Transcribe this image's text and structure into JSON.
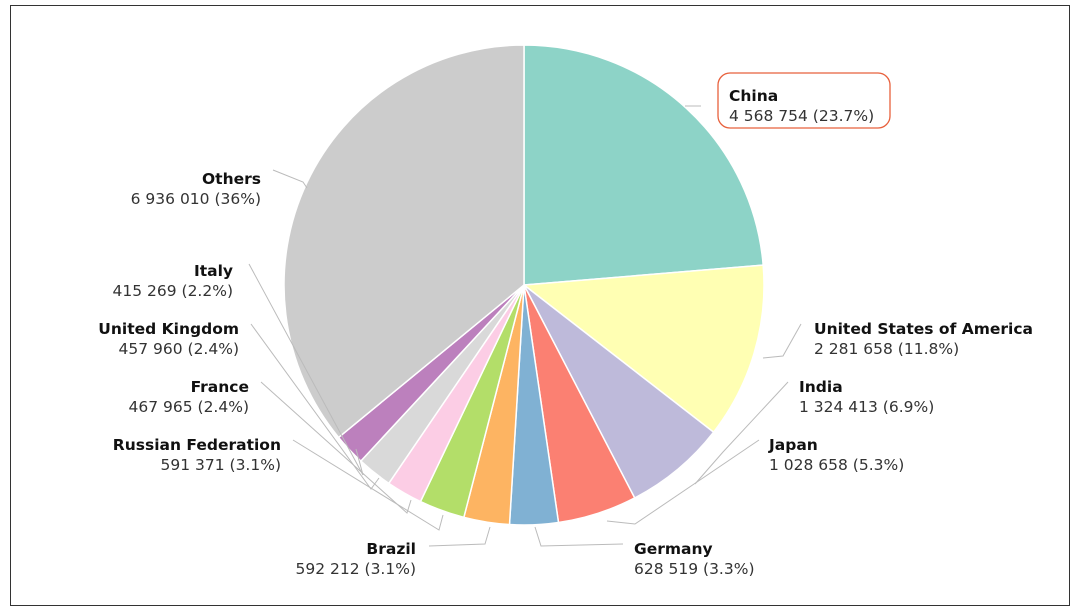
{
  "chart_data": {
    "type": "pie",
    "title": "",
    "slices": [
      {
        "name": "China",
        "value": 4568754,
        "value_text": "4 568 754",
        "percent_text": "23.7%",
        "color": "#8dd3c7",
        "highlighted": true
      },
      {
        "name": "United States of America",
        "value": 2281658,
        "value_text": "2 281 658",
        "percent_text": "11.8%",
        "color": "#ffffb3"
      },
      {
        "name": "India",
        "value": 1324413,
        "value_text": "1 324 413",
        "percent_text": "6.9%",
        "color": "#bebada"
      },
      {
        "name": "Japan",
        "value": 1028658,
        "value_text": "1 028 658",
        "percent_text": "5.3%",
        "color": "#fb8072"
      },
      {
        "name": "Germany",
        "value": 628519,
        "value_text": "628 519",
        "percent_text": "3.3%",
        "color": "#80b1d3"
      },
      {
        "name": "Brazil",
        "value": 592212,
        "value_text": "592 212",
        "percent_text": "3.1%",
        "color": "#fdb462"
      },
      {
        "name": "Russian Federation",
        "value": 591371,
        "value_text": "591 371",
        "percent_text": "3.1%",
        "color": "#b3de69"
      },
      {
        "name": "France",
        "value": 467965,
        "value_text": "467 965",
        "percent_text": "2.4%",
        "color": "#fccde5"
      },
      {
        "name": "United Kingdom",
        "value": 457960,
        "value_text": "457 960",
        "percent_text": "2.4%",
        "color": "#d9d9d9"
      },
      {
        "name": "Italy",
        "value": 415269,
        "value_text": "415 269",
        "percent_text": "2.2%",
        "color": "#bc80bd"
      },
      {
        "name": "Others",
        "value": 6936010,
        "value_text": "6 936 010",
        "percent_text": "36%",
        "color": "#cccccc"
      }
    ],
    "colors": {
      "leader_line": "#bbbbbb",
      "highlight_border": "#e8603c",
      "slice_border": "#ffffff"
    }
  }
}
